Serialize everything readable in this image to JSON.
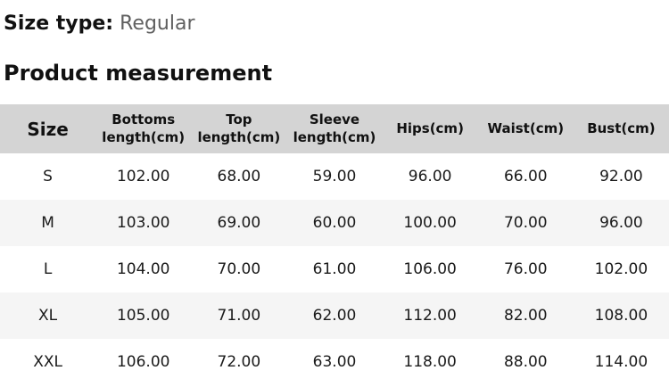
{
  "page": {
    "size_type_label": "Size type:",
    "size_type_value": "Regular",
    "section_title": "Product measurement"
  },
  "table": {
    "headers": [
      "Size",
      "Bottoms length(cm)",
      "Top length(cm)",
      "Sleeve length(cm)",
      "Hips(cm)",
      "Waist(cm)",
      "Bust(cm)"
    ],
    "rows": [
      {
        "size": "S",
        "values": [
          "102.00",
          "68.00",
          "59.00",
          "96.00",
          "66.00",
          "92.00"
        ]
      },
      {
        "size": "M",
        "values": [
          "103.00",
          "69.00",
          "60.00",
          "100.00",
          "70.00",
          "96.00"
        ]
      },
      {
        "size": "L",
        "values": [
          "104.00",
          "70.00",
          "61.00",
          "106.00",
          "76.00",
          "102.00"
        ]
      },
      {
        "size": "XL",
        "values": [
          "105.00",
          "71.00",
          "62.00",
          "112.00",
          "82.00",
          "108.00"
        ]
      },
      {
        "size": "XXL",
        "values": [
          "106.00",
          "72.00",
          "63.00",
          "118.00",
          "88.00",
          "114.00"
        ]
      }
    ]
  },
  "colors": {
    "header_bg": "#d4d4d4",
    "row_alt_bg": "#f5f5f5",
    "row_bg": "#ffffff",
    "text_primary": "#111111",
    "text_data": "#1a1a1a",
    "text_secondary": "#606060"
  }
}
